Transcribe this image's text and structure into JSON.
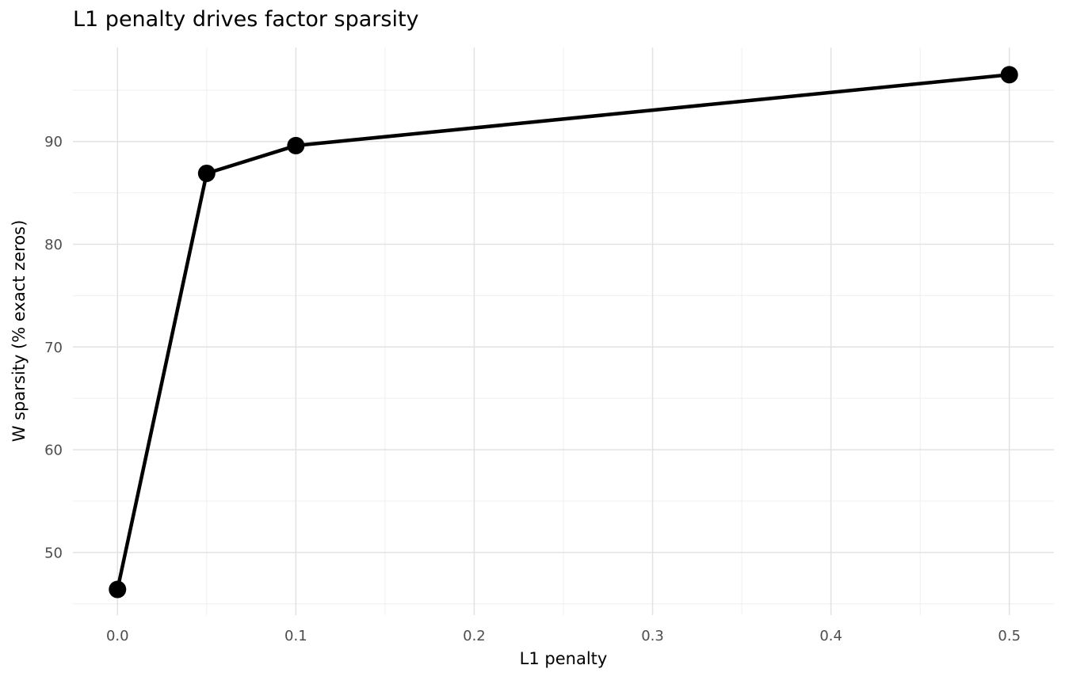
{
  "chart_data": {
    "type": "line",
    "title": "L1 penalty drives factor sparsity",
    "xlabel": "L1 penalty",
    "ylabel": "W sparsity (% exact zeros)",
    "series": [
      {
        "name": "W sparsity",
        "x": [
          0.0,
          0.05,
          0.1,
          0.5
        ],
        "y": [
          46.4,
          86.9,
          89.6,
          96.5
        ]
      }
    ],
    "x_ticks": {
      "values": [
        0.0,
        0.1,
        0.2,
        0.3,
        0.4,
        0.5
      ],
      "labels": [
        "0.0",
        "0.1",
        "0.2",
        "0.3",
        "0.4",
        "0.5"
      ]
    },
    "y_ticks": {
      "values": [
        50,
        60,
        70,
        80,
        90
      ],
      "labels": [
        "50",
        "60",
        "70",
        "80",
        "90"
      ]
    },
    "x_minor_gridlines": [
      0.05,
      0.15,
      0.25,
      0.35,
      0.45
    ],
    "y_minor_gridlines": [
      45,
      55,
      65,
      75,
      85,
      95
    ],
    "xlim": [
      -0.025,
      0.525
    ],
    "ylim": [
      43.9,
      99.15
    ],
    "grid": "major+minor",
    "legend_position": "none",
    "style": {
      "line_color": "#000000",
      "point_color": "#000000",
      "grid_major_color": "#e2e2e2",
      "grid_minor_color": "#efefef",
      "tick_label_color": "#4d4d4d",
      "title_color": "#000000",
      "background_color": "#ffffff"
    }
  }
}
